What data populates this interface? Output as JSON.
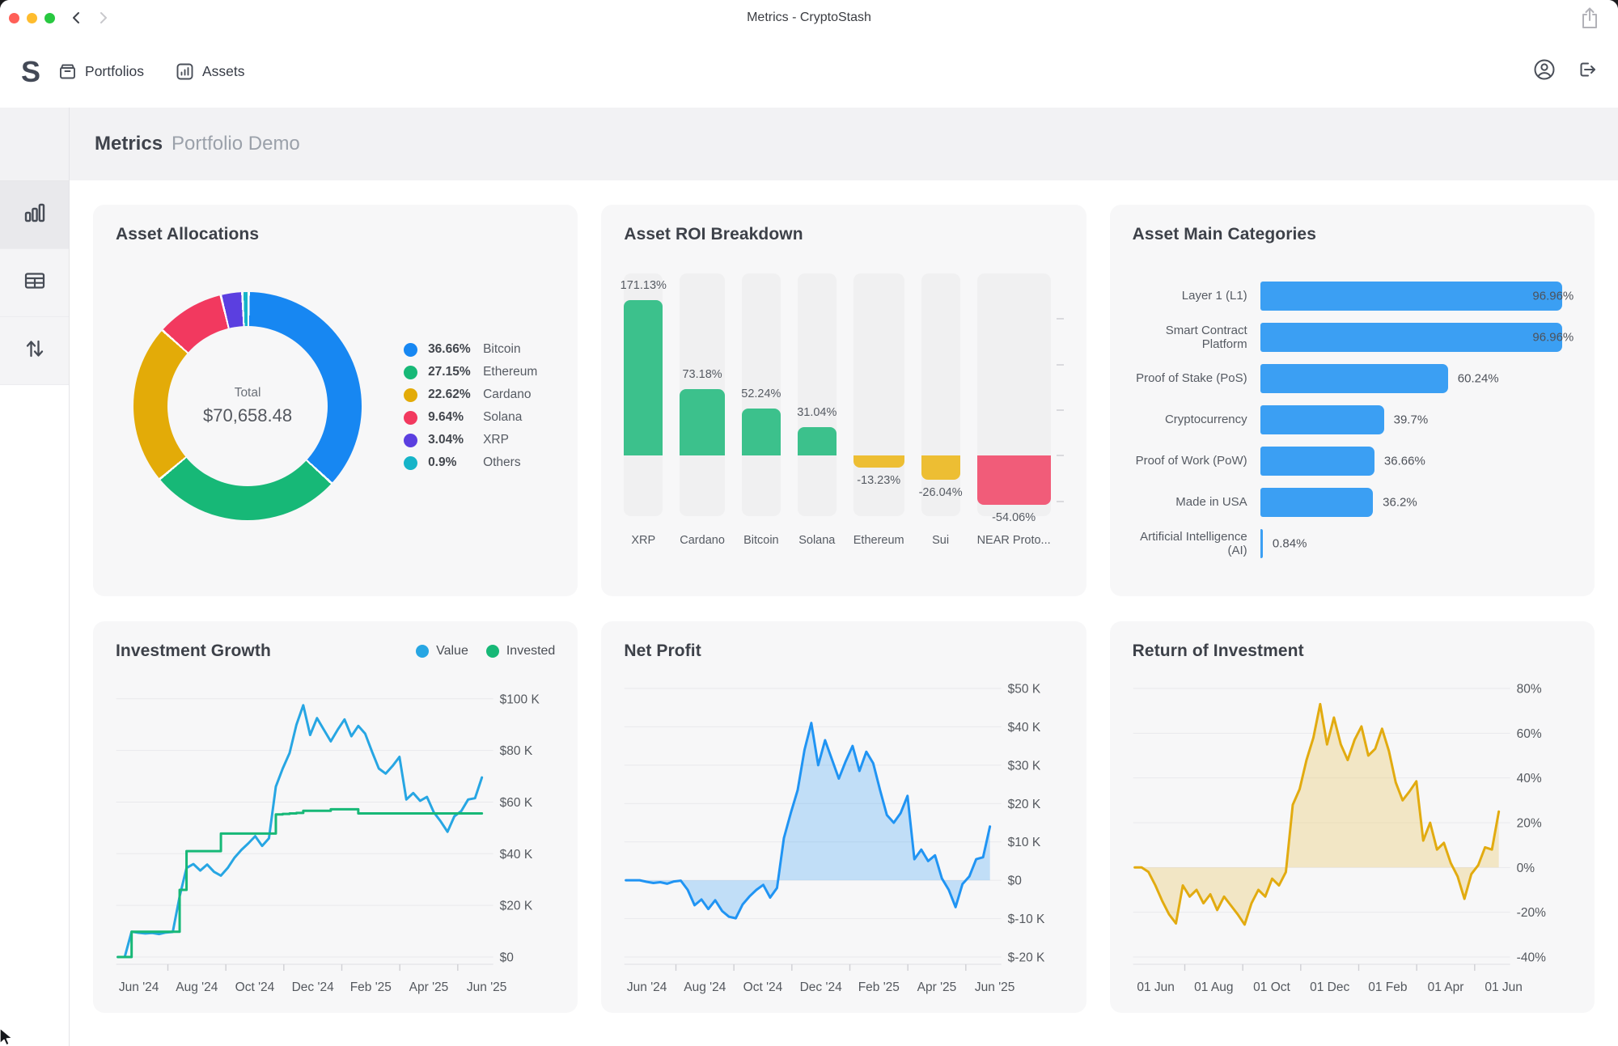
{
  "window": {
    "title": "Metrics - CryptoStash"
  },
  "nav": {
    "logo_text": "S",
    "items": [
      {
        "label": "Portfolios"
      },
      {
        "label": "Assets"
      }
    ]
  },
  "page_header": {
    "title": "Metrics",
    "subtitle": "Portfolio Demo"
  },
  "sidebar": {
    "items": [
      {
        "icon": "bar-chart-icon",
        "active": true
      },
      {
        "icon": "table-icon",
        "active": false
      },
      {
        "icon": "transfers-arrows-icon",
        "active": false
      }
    ]
  },
  "colors": {
    "accent_blue": "#1787f2",
    "green": "#17b877",
    "gold": "#e3ab08",
    "pink": "#f2395f",
    "purple": "#5b3fe0",
    "teal": "#16b4c8"
  },
  "chart_data": [
    {
      "type": "pie",
      "title": "Asset Allocations",
      "center_label": "Total",
      "center_value": "$70,658.48",
      "legend_position": "right",
      "slices": [
        {
          "label": "Bitcoin",
          "pct": 36.66,
          "pct_label": "36.66%",
          "color": "#1787f2"
        },
        {
          "label": "Ethereum",
          "pct": 27.15,
          "pct_label": "27.15%",
          "color": "#17b877"
        },
        {
          "label": "Cardano",
          "pct": 22.62,
          "pct_label": "22.62%",
          "color": "#e3ab08"
        },
        {
          "label": "Solana",
          "pct": 9.64,
          "pct_label": "9.64%",
          "color": "#f2395f"
        },
        {
          "label": "XRP",
          "pct": 3.04,
          "pct_label": "3.04%",
          "color": "#5b3fe0"
        },
        {
          "label": "Others",
          "pct": 0.9,
          "pct_label": "0.9%",
          "color": "#16b4c8"
        }
      ]
    },
    {
      "type": "bar",
      "title": "Asset ROI Breakdown",
      "ylim": [
        -100,
        200
      ],
      "grid": false,
      "categories": [
        "XRP",
        "Cardano",
        "Bitcoin",
        "Solana",
        "Ethereum",
        "Sui",
        "NEAR Proto..."
      ],
      "values": [
        171.13,
        73.18,
        52.24,
        31.04,
        -13.23,
        -26.04,
        -54.06
      ],
      "value_labels": [
        "171.13%",
        "73.18%",
        "52.24%",
        "31.04%",
        "-13.23%",
        "-26.04%",
        "-54.06%"
      ],
      "colors": [
        "#3cc18c",
        "#3cc18c",
        "#3cc18c",
        "#3cc18c",
        "#edbe33",
        "#edbe33",
        "#f15c79"
      ],
      "right_axis_ticks": [
        150,
        100,
        50,
        0,
        -50
      ]
    },
    {
      "type": "hbar",
      "title": "Asset Main Categories",
      "xmax": 100,
      "bar_color": "#3b9ff3",
      "categories": [
        "Layer 1 (L1)",
        "Smart Contract Platform",
        "Proof of Stake (PoS)",
        "Cryptocurrency",
        "Proof of Work (PoW)",
        "Made in USA",
        "Artificial Intelligence (AI)"
      ],
      "values": [
        96.96,
        96.96,
        60.24,
        39.7,
        36.66,
        36.2,
        0.84
      ],
      "value_labels": [
        "96.96%",
        "96.96%",
        "60.24%",
        "39.7%",
        "36.66%",
        "36.2%",
        "0.84%"
      ]
    },
    {
      "type": "line",
      "title": "Investment Growth",
      "legend": [
        {
          "label": "Value",
          "color": "#27a6e3"
        },
        {
          "label": "Invested",
          "color": "#17b877"
        }
      ],
      "ylim": [
        0,
        104
      ],
      "yticks": [
        {
          "v": 100,
          "label": "$100 K"
        },
        {
          "v": 80,
          "label": "$80 K"
        },
        {
          "v": 60,
          "label": "$60 K"
        },
        {
          "v": 40,
          "label": "$40 K"
        },
        {
          "v": 20,
          "label": "$20 K"
        },
        {
          "v": 0,
          "label": "$0"
        }
      ],
      "xticks": [
        "Jun '24",
        "Aug '24",
        "Oct '24",
        "Dec '24",
        "Feb '25",
        "Apr '25",
        "Jun '25"
      ],
      "unit": "K USD",
      "series": [
        {
          "name": "Value",
          "color": "#27a6e3",
          "values": [
            0,
            0,
            9.8,
            9.4,
            9.1,
            9.3,
            8.9,
            9.5,
            9.7,
            23.5,
            34.5,
            36,
            33.5,
            35.8,
            33,
            31.5,
            34.5,
            38.5,
            41.5,
            44,
            46.8,
            43,
            46,
            66,
            73,
            79,
            90,
            97.5,
            86,
            92.5,
            88,
            83.5,
            88,
            92,
            85.5,
            89.5,
            86.5,
            79.5,
            73,
            71,
            74,
            77.5,
            61,
            63.5,
            60.5,
            62,
            56,
            52.5,
            48.5,
            54.5,
            56.5,
            61,
            61.5,
            69.5
          ]
        },
        {
          "name": "Invested",
          "color": "#17b877",
          "step": true,
          "values": [
            0,
            0,
            9.8,
            9.8,
            9.8,
            9.8,
            9.8,
            9.8,
            9.8,
            26,
            41,
            41,
            41,
            41,
            41,
            47.8,
            47.8,
            47.8,
            47.8,
            47.8,
            47.8,
            47.8,
            47.8,
            55.2,
            55.4,
            55.6,
            55.8,
            56.6,
            56.6,
            56.6,
            56.6,
            57.2,
            57.2,
            57.2,
            57.2,
            55.6,
            55.6,
            55.6,
            55.6,
            55.6,
            55.6,
            55.6,
            55.6,
            55.6,
            55.6,
            55.6,
            55.6,
            55.6,
            55.6,
            55.6,
            55.6,
            55.6,
            55.6,
            55.6
          ]
        }
      ]
    },
    {
      "type": "area",
      "title": "Net Profit",
      "line_color": "#2094f3",
      "fill_color": "rgba(33,148,243,0.25)",
      "ylim": [
        -20,
        50
      ],
      "yticks": [
        {
          "v": 50,
          "label": "$50 K"
        },
        {
          "v": 40,
          "label": "$40 K"
        },
        {
          "v": 30,
          "label": "$30 K"
        },
        {
          "v": 20,
          "label": "$20 K"
        },
        {
          "v": 10,
          "label": "$10 K"
        },
        {
          "v": 0,
          "label": "$0"
        },
        {
          "v": -10,
          "label": "$-10 K"
        },
        {
          "v": -20,
          "label": "$-20 K"
        }
      ],
      "xticks": [
        "Jun '24",
        "Aug '24",
        "Oct '24",
        "Dec '24",
        "Feb '25",
        "Apr '25",
        "Jun '25"
      ],
      "unit": "K USD",
      "values": [
        0,
        0,
        0,
        -0.4,
        -0.7,
        -0.5,
        -0.9,
        -0.3,
        -0.1,
        -2.5,
        -6.5,
        -5,
        -7.5,
        -5.2,
        -8,
        -9.5,
        -9.9,
        -6.3,
        -4.2,
        -2.5,
        -1.2,
        -4.5,
        -2,
        11,
        17.5,
        23.5,
        34,
        41,
        30,
        36.5,
        31.5,
        26.5,
        31,
        35,
        28.5,
        33.5,
        30.5,
        23.5,
        17,
        15,
        17.5,
        22,
        5.5,
        8,
        5,
        6.5,
        0.5,
        -2.5,
        -7,
        -1,
        1,
        5.5,
        6,
        14
      ]
    },
    {
      "type": "area",
      "title": "Return of Investment",
      "line_color": "#e2ab10",
      "fill_color": "rgba(233,196,90,0.32)",
      "ylim": [
        -40,
        80
      ],
      "yticks": [
        {
          "v": 80,
          "label": "80%"
        },
        {
          "v": 60,
          "label": "60%"
        },
        {
          "v": 40,
          "label": "40%"
        },
        {
          "v": 20,
          "label": "20%"
        },
        {
          "v": 0,
          "label": "0%"
        },
        {
          "v": -20,
          "label": "-20%"
        },
        {
          "v": -40,
          "label": "-40%"
        }
      ],
      "xticks": [
        "01 Jun",
        "01 Aug",
        "01 Oct",
        "01 Dec",
        "01 Feb",
        "01 Apr",
        "01 Jun"
      ],
      "unit": "%",
      "values": [
        0,
        0,
        -2,
        -8,
        -15,
        -21,
        -25,
        -8,
        -13,
        -10,
        -16,
        -12,
        -19,
        -13,
        -17,
        -21,
        -25.5,
        -16,
        -10,
        -13,
        -5,
        -8,
        -2,
        28,
        35,
        48,
        58,
        73,
        55,
        67,
        55,
        48,
        57,
        63,
        50,
        53,
        62,
        52,
        38,
        30,
        34,
        38.5,
        12,
        20,
        8,
        11,
        2,
        -4,
        -14,
        -3,
        1,
        9,
        8,
        25
      ]
    }
  ]
}
